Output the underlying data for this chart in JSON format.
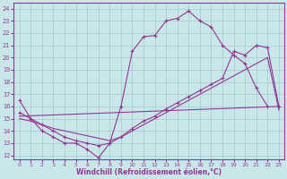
{
  "xlabel": "Windchill (Refroidissement éolien,°C)",
  "background_color": "#c8e8e8",
  "grid_color": "#a0cccc",
  "line_color": "#993399",
  "xlim_min": -0.5,
  "xlim_max": 23.5,
  "ylim_min": 11.7,
  "ylim_max": 24.5,
  "yticks": [
    12,
    13,
    14,
    15,
    16,
    17,
    18,
    19,
    20,
    21,
    22,
    23,
    24
  ],
  "xticks": [
    0,
    1,
    2,
    3,
    4,
    5,
    6,
    7,
    8,
    9,
    10,
    11,
    12,
    13,
    14,
    15,
    16,
    17,
    18,
    19,
    20,
    21,
    22,
    23
  ],
  "line1_x": [
    0,
    1,
    2,
    3,
    4,
    5,
    6,
    7,
    8,
    9,
    10,
    11,
    12,
    13,
    14,
    15,
    16,
    17,
    18,
    19,
    20,
    21,
    22
  ],
  "line1_y": [
    16.5,
    15.0,
    14.0,
    13.5,
    13.0,
    13.0,
    12.5,
    11.8,
    13.0,
    16.0,
    20.5,
    21.7,
    21.8,
    23.0,
    23.2,
    23.8,
    23.0,
    22.5,
    21.0,
    20.2,
    19.5,
    17.5,
    16.0
  ],
  "line2_x": [
    0,
    1,
    2,
    3,
    4,
    5,
    6,
    7,
    8,
    9,
    10,
    11,
    12,
    13,
    14,
    15,
    16,
    17,
    18,
    19,
    20,
    21,
    22,
    23
  ],
  "line2_y": [
    15.5,
    15.0,
    14.5,
    14.0,
    13.5,
    13.2,
    13.0,
    12.8,
    13.0,
    13.5,
    14.2,
    14.8,
    15.2,
    15.8,
    16.3,
    16.8,
    17.3,
    17.8,
    18.3,
    20.5,
    20.2,
    21.0,
    20.8,
    16.0
  ],
  "line3_x": [
    0,
    23
  ],
  "line3_y": [
    15.2,
    16.0
  ],
  "line4_x": [
    0,
    1,
    2,
    3,
    4,
    5,
    6,
    7,
    8,
    9,
    10,
    11,
    12,
    13,
    14,
    15,
    16,
    17,
    18,
    19,
    20,
    21,
    22,
    23
  ],
  "line4_y": [
    15.0,
    14.8,
    14.5,
    14.2,
    14.0,
    13.8,
    13.6,
    13.4,
    13.2,
    13.5,
    14.0,
    14.5,
    15.0,
    15.5,
    16.0,
    16.5,
    17.0,
    17.5,
    18.0,
    18.5,
    19.0,
    19.5,
    20.0,
    15.7
  ]
}
